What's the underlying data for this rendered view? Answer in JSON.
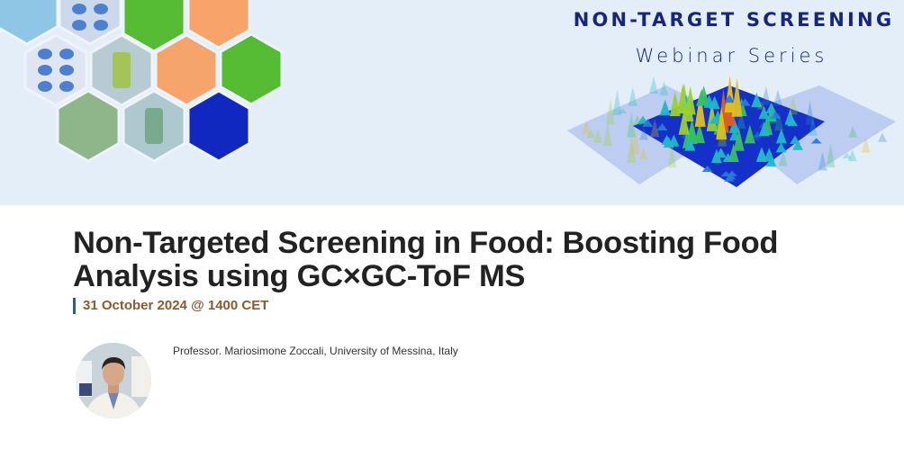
{
  "banner": {
    "series_title": "NON-TARGET SCREENING",
    "series_subtitle": "Webinar Series",
    "colors": {
      "background": "#e3eef9",
      "title": "#16267e",
      "green": "#55bb33",
      "orange": "#f7a36a",
      "blue": "#1128c0"
    }
  },
  "event": {
    "title": "Non-Targeted Screening in Food: Boosting Food Analysis using GC×GC-ToF MS",
    "date": "31 October 2024 @ 1400 CET",
    "speaker": "Professor. Mariosimone Zoccali, University of Messina, Italy"
  }
}
